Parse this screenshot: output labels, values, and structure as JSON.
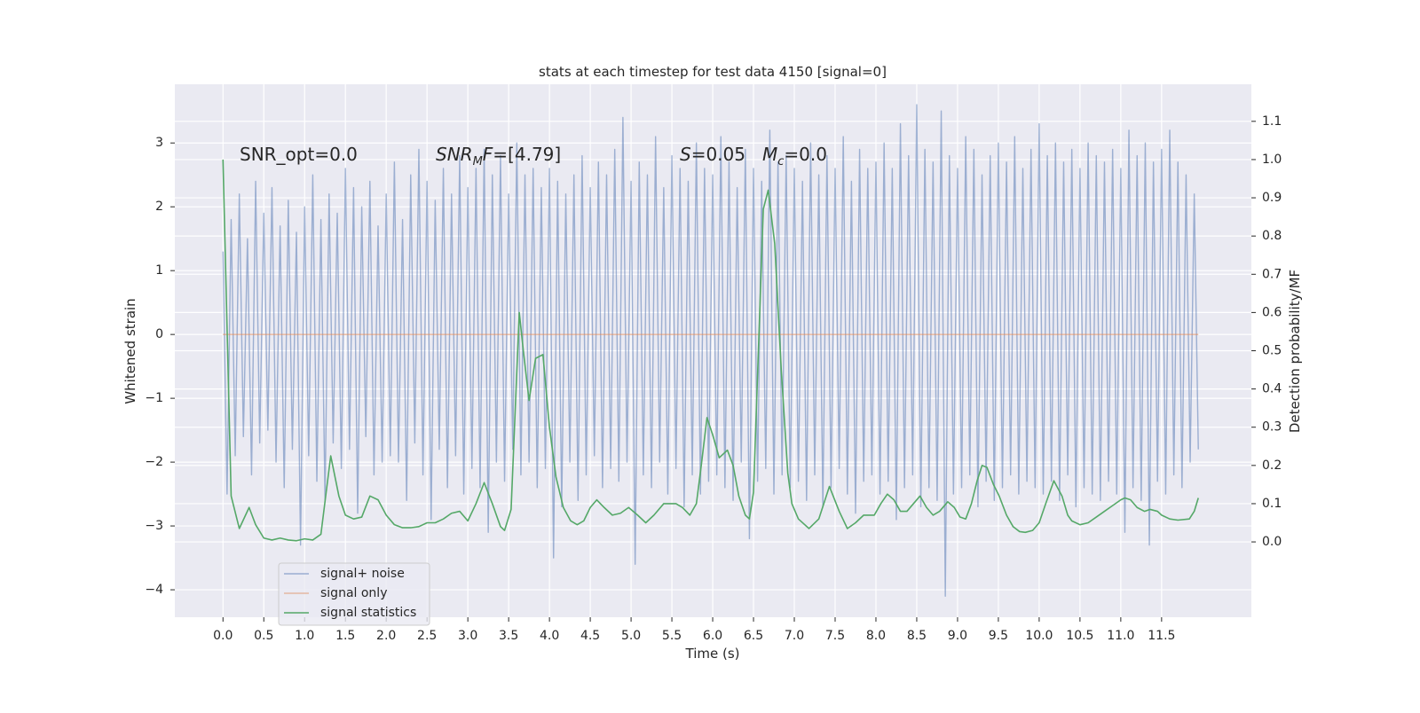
{
  "chart_data": {
    "type": "line",
    "title": "stats at each timestep for test data 4150 [signal=0]",
    "xlabel": "Time (s)",
    "ylabel": "Whitened strain",
    "y2label": "Detection probability/MF",
    "xlim": [
      -0.59,
      12.6
    ],
    "ylim": [
      -4.43,
      3.92
    ],
    "y2lim": [
      -0.197,
      1.197
    ],
    "grid": true,
    "xticks": [
      {
        "value": 0,
        "label": "0.0"
      },
      {
        "value": 0.5,
        "label": "0.5"
      },
      {
        "value": 1,
        "label": "1.0"
      },
      {
        "value": 1.5,
        "label": "1.5"
      },
      {
        "value": 2,
        "label": "2.0"
      },
      {
        "value": 2.5,
        "label": "2.5"
      },
      {
        "value": 3,
        "label": "3.0"
      },
      {
        "value": 3.5,
        "label": "3.5"
      },
      {
        "value": 4,
        "label": "4.0"
      },
      {
        "value": 4.5,
        "label": "4.5"
      },
      {
        "value": 5,
        "label": "5.0"
      },
      {
        "value": 5.5,
        "label": "5.5"
      },
      {
        "value": 6,
        "label": "6.0"
      },
      {
        "value": 6.5,
        "label": "6.5"
      },
      {
        "value": 7,
        "label": "7.0"
      },
      {
        "value": 7.5,
        "label": "7.5"
      },
      {
        "value": 8,
        "label": "8.0"
      },
      {
        "value": 8.5,
        "label": "8.5"
      },
      {
        "value": 9,
        "label": "9.0"
      },
      {
        "value": 9.5,
        "label": "9.5"
      },
      {
        "value": 10,
        "label": "10.0"
      },
      {
        "value": 10.5,
        "label": "10.5"
      },
      {
        "value": 11,
        "label": "11.0"
      },
      {
        "value": 11.5,
        "label": "11.5"
      }
    ],
    "yticks": [
      {
        "value": -4,
        "label": "−4"
      },
      {
        "value": -3,
        "label": "−3"
      },
      {
        "value": -2,
        "label": "−2"
      },
      {
        "value": -1,
        "label": "−1"
      },
      0,
      1,
      2,
      3
    ],
    "y2ticks": [
      {
        "value": 0,
        "label": "0.0"
      },
      {
        "value": 0.1,
        "label": "0.1"
      },
      {
        "value": 0.2,
        "label": "0.2"
      },
      {
        "value": 0.3,
        "label": "0.3"
      },
      {
        "value": 0.4,
        "label": "0.4"
      },
      {
        "value": 0.5,
        "label": "0.5"
      },
      {
        "value": 0.6,
        "label": "0.6"
      },
      {
        "value": 0.7,
        "label": "0.7"
      },
      {
        "value": 0.8,
        "label": "0.8"
      },
      {
        "value": 0.9,
        "label": "0.9"
      },
      {
        "value": 1,
        "label": "1.0"
      },
      {
        "value": 1.1,
        "label": "1.1"
      }
    ],
    "annotations": [
      [
        {
          "text": "SNR_opt=0.0"
        }
      ],
      [
        {
          "text": "SNR",
          "italic": true
        },
        {
          "text": "M",
          "italic": true,
          "sub": true
        },
        {
          "text": "F",
          "italic": true
        },
        {
          "text": "=[4.79]"
        }
      ],
      [
        {
          "text": "S",
          "italic": true
        },
        {
          "text": "=0.05"
        }
      ],
      [
        {
          "text": "M",
          "italic": true
        },
        {
          "text": "c",
          "italic": true,
          "sub": true
        },
        {
          "text": "=0.0"
        }
      ]
    ],
    "series": [
      {
        "name": "signal+ noise",
        "color": "#4c72b0",
        "opacity": 0.5,
        "x": [
          0,
          0.05,
          0.1,
          0.15,
          0.2,
          0.25,
          0.3,
          0.35,
          0.4,
          0.45,
          0.5,
          0.55,
          0.6,
          0.65,
          0.7,
          0.75,
          0.8,
          0.85,
          0.9,
          0.95,
          1,
          1.05,
          1.1,
          1.15,
          1.2,
          1.25,
          1.3,
          1.35,
          1.4,
          1.45,
          1.5,
          1.55,
          1.6,
          1.65,
          1.7,
          1.75,
          1.8,
          1.85,
          1.9,
          1.95,
          2,
          2.05,
          2.1,
          2.15,
          2.2,
          2.25,
          2.3,
          2.35,
          2.4,
          2.45,
          2.5,
          2.55,
          2.6,
          2.65,
          2.7,
          2.75,
          2.8,
          2.85,
          2.9,
          2.95,
          3,
          3.05,
          3.1,
          3.15,
          3.2,
          3.25,
          3.3,
          3.35,
          3.4,
          3.45,
          3.5,
          3.55,
          3.6,
          3.65,
          3.7,
          3.75,
          3.8,
          3.85,
          3.9,
          3.95,
          4,
          4.05,
          4.1,
          4.15,
          4.2,
          4.25,
          4.3,
          4.35,
          4.4,
          4.45,
          4.5,
          4.55,
          4.6,
          4.65,
          4.7,
          4.75,
          4.8,
          4.85,
          4.9,
          4.95,
          5,
          5.05,
          5.1,
          5.15,
          5.2,
          5.25,
          5.3,
          5.35,
          5.4,
          5.45,
          5.5,
          5.55,
          5.6,
          5.65,
          5.7,
          5.75,
          5.8,
          5.85,
          5.9,
          5.95,
          6,
          6.05,
          6.1,
          6.15,
          6.2,
          6.25,
          6.3,
          6.35,
          6.4,
          6.45,
          6.5,
          6.55,
          6.6,
          6.65,
          6.7,
          6.75,
          6.8,
          6.85,
          6.9,
          6.95,
          7,
          7.05,
          7.1,
          7.15,
          7.2,
          7.25,
          7.3,
          7.35,
          7.4,
          7.45,
          7.5,
          7.55,
          7.6,
          7.65,
          7.7,
          7.75,
          7.8,
          7.85,
          7.9,
          7.95,
          8,
          8.05,
          8.1,
          8.15,
          8.2,
          8.25,
          8.3,
          8.35,
          8.4,
          8.45,
          8.5,
          8.55,
          8.6,
          8.65,
          8.7,
          8.75,
          8.8,
          8.85,
          8.9,
          8.95,
          9,
          9.05,
          9.1,
          9.15,
          9.2,
          9.25,
          9.3,
          9.35,
          9.4,
          9.45,
          9.5,
          9.55,
          9.6,
          9.65,
          9.7,
          9.75,
          9.8,
          9.85,
          9.9,
          9.95,
          10,
          10.05,
          10.1,
          10.15,
          10.2,
          10.25,
          10.3,
          10.35,
          10.4,
          10.45,
          10.5,
          10.55,
          10.6,
          10.65,
          10.7,
          10.75,
          10.8,
          10.85,
          10.9,
          10.95,
          11,
          11.05,
          11.1,
          11.15,
          11.2,
          11.25,
          11.3,
          11.35,
          11.4,
          11.45,
          11.5,
          11.55,
          11.6,
          11.65,
          11.7,
          11.75,
          11.8,
          11.85,
          11.9,
          11.95
        ],
        "values": [
          1.3,
          -2.5,
          1.8,
          -1.9,
          2.2,
          -1.6,
          1.5,
          -2.2,
          2.4,
          -1.7,
          1.9,
          -1.5,
          2.3,
          -2.0,
          1.7,
          -2.4,
          2.1,
          -1.8,
          1.6,
          -3.3,
          2.0,
          -1.9,
          2.5,
          -2.3,
          1.8,
          -2.6,
          2.2,
          -1.7,
          1.9,
          -2.1,
          2.6,
          -1.8,
          2.3,
          -2.8,
          2.0,
          -1.6,
          2.4,
          -2.2,
          1.7,
          -2.0,
          2.2,
          -1.9,
          2.7,
          -2.0,
          1.8,
          -2.6,
          2.5,
          -1.7,
          2.9,
          -2.2,
          2.4,
          -2.9,
          2.1,
          -1.8,
          2.6,
          -2.4,
          2.2,
          -1.9,
          2.8,
          -2.5,
          2.3,
          -2.1,
          2.6,
          -2.4,
          2.9,
          -3.1,
          2.5,
          -2.0,
          2.8,
          -2.3,
          2.2,
          -1.8,
          3.0,
          -2.2,
          2.5,
          -2.0,
          2.6,
          -2.4,
          2.3,
          -2.1,
          2.6,
          -3.5,
          2.4,
          -2.7,
          2.2,
          -2.0,
          2.5,
          -2.6,
          2.8,
          -2.2,
          2.3,
          -1.9,
          2.7,
          -2.4,
          2.5,
          -2.1,
          2.9,
          -2.3,
          3.4,
          -2.0,
          2.4,
          -3.6,
          2.7,
          -2.2,
          2.5,
          -2.4,
          3.1,
          -2.0,
          2.3,
          -2.5,
          2.8,
          -2.1,
          2.6,
          -2.7,
          2.4,
          -2.2,
          3.0,
          -2.5,
          2.6,
          -2.3,
          2.5,
          -2.2,
          3.1,
          -2.4,
          2.7,
          -2.6,
          2.3,
          -2.0,
          2.9,
          -3.2,
          2.6,
          -2.3,
          2.4,
          -2.1,
          3.2,
          -2.5,
          2.7,
          -2.2,
          2.8,
          -2.4,
          2.6,
          -2.3,
          2.4,
          -2.6,
          3.0,
          -2.2,
          2.5,
          -2.7,
          2.8,
          -2.4,
          2.6,
          -2.1,
          3.1,
          -2.5,
          2.4,
          -2.8,
          2.9,
          -2.3,
          2.6,
          -2.2,
          2.7,
          -2.5,
          3.0,
          -2.3,
          2.6,
          -2.9,
          3.3,
          -2.4,
          2.8,
          -2.2,
          3.6,
          -2.7,
          2.9,
          -2.4,
          2.7,
          -2.6,
          3.5,
          -4.1,
          2.8,
          -2.5,
          2.6,
          -2.4,
          3.1,
          -2.2,
          2.9,
          -2.7,
          2.5,
          -2.3,
          2.8,
          -2.6,
          3.0,
          -2.4,
          2.7,
          -2.2,
          3.1,
          -2.5,
          2.6,
          -2.3,
          2.9,
          -2.4,
          3.3,
          -2.5,
          2.8,
          -2.3,
          3.0,
          -2.6,
          2.7,
          -2.2,
          2.9,
          -2.7,
          2.6,
          -2.4,
          3.0,
          -2.5,
          2.8,
          -2.6,
          2.7,
          -2.3,
          2.9,
          -2.5,
          2.6,
          -3.1,
          3.2,
          -2.4,
          2.8,
          -2.6,
          3.0,
          -3.3,
          2.7,
          -2.3,
          2.9,
          -2.5,
          3.2,
          -2.2,
          2.7,
          -2.4,
          2.5,
          -2.0,
          2.2,
          -1.8
        ]
      },
      {
        "name": "signal only",
        "color": "#dd8452",
        "opacity": 0.5,
        "x": [
          0,
          11.95
        ],
        "values": [
          0,
          0
        ]
      },
      {
        "name": "signal statistics",
        "color": "#55a868",
        "opacity": 1,
        "axis": "y2",
        "x": [
          0,
          0.1,
          0.2,
          0.32,
          0.4,
          0.5,
          0.6,
          0.7,
          0.8,
          0.9,
          1.0,
          1.1,
          1.2,
          1.32,
          1.42,
          1.5,
          1.6,
          1.7,
          1.8,
          1.9,
          2.0,
          2.1,
          2.2,
          2.3,
          2.4,
          2.5,
          2.6,
          2.7,
          2.8,
          2.9,
          3.0,
          3.1,
          3.2,
          3.3,
          3.4,
          3.45,
          3.53,
          3.63,
          3.68,
          3.75,
          3.83,
          3.92,
          4.0,
          4.08,
          4.17,
          4.26,
          4.34,
          4.42,
          4.5,
          4.58,
          4.67,
          4.77,
          4.87,
          4.97,
          5.08,
          5.18,
          5.28,
          5.4,
          5.55,
          5.63,
          5.72,
          5.8,
          5.86,
          5.93,
          6.0,
          6.08,
          6.18,
          6.25,
          6.32,
          6.4,
          6.45,
          6.5,
          6.56,
          6.62,
          6.68,
          6.76,
          6.84,
          6.92,
          6.97,
          7.05,
          7.18,
          7.3,
          7.43,
          7.55,
          7.65,
          7.75,
          7.85,
          7.98,
          8.06,
          8.14,
          8.22,
          8.3,
          8.38,
          8.46,
          8.54,
          8.62,
          8.7,
          8.78,
          8.88,
          8.96,
          9.03,
          9.1,
          9.17,
          9.24,
          9.3,
          9.36,
          9.44,
          9.51,
          9.6,
          9.68,
          9.76,
          9.83,
          9.92,
          10.0,
          10.08,
          10.18,
          10.28,
          10.35,
          10.4,
          10.5,
          10.6,
          10.7,
          10.8,
          10.9,
          11.0,
          11.05,
          11.12,
          11.2,
          11.29,
          11.36,
          11.45,
          11.5,
          11.6,
          11.7,
          11.84,
          11.9,
          11.95
        ],
        "values": [
          1.0,
          0.12,
          0.035,
          0.09,
          0.045,
          0.01,
          0.005,
          0.01,
          0.005,
          0.003,
          0.008,
          0.005,
          0.02,
          0.225,
          0.12,
          0.07,
          0.06,
          0.065,
          0.12,
          0.11,
          0.07,
          0.045,
          0.037,
          0.037,
          0.04,
          0.05,
          0.05,
          0.06,
          0.075,
          0.08,
          0.055,
          0.1,
          0.155,
          0.1,
          0.04,
          0.03,
          0.085,
          0.6,
          0.5,
          0.37,
          0.48,
          0.49,
          0.3,
          0.17,
          0.09,
          0.055,
          0.045,
          0.055,
          0.09,
          0.11,
          0.09,
          0.07,
          0.075,
          0.09,
          0.07,
          0.05,
          0.07,
          0.1,
          0.1,
          0.09,
          0.07,
          0.1,
          0.2,
          0.325,
          0.28,
          0.22,
          0.24,
          0.2,
          0.12,
          0.07,
          0.06,
          0.13,
          0.5,
          0.87,
          0.92,
          0.78,
          0.45,
          0.18,
          0.1,
          0.06,
          0.035,
          0.06,
          0.145,
          0.08,
          0.035,
          0.05,
          0.07,
          0.07,
          0.1,
          0.125,
          0.11,
          0.08,
          0.08,
          0.1,
          0.12,
          0.09,
          0.07,
          0.08,
          0.105,
          0.09,
          0.065,
          0.06,
          0.1,
          0.16,
          0.2,
          0.195,
          0.15,
          0.12,
          0.07,
          0.04,
          0.027,
          0.025,
          0.03,
          0.05,
          0.1,
          0.16,
          0.12,
          0.07,
          0.055,
          0.045,
          0.05,
          0.065,
          0.08,
          0.095,
          0.11,
          0.115,
          0.11,
          0.09,
          0.08,
          0.085,
          0.08,
          0.07,
          0.06,
          0.057,
          0.06,
          0.08,
          0.115
        ]
      }
    ]
  }
}
